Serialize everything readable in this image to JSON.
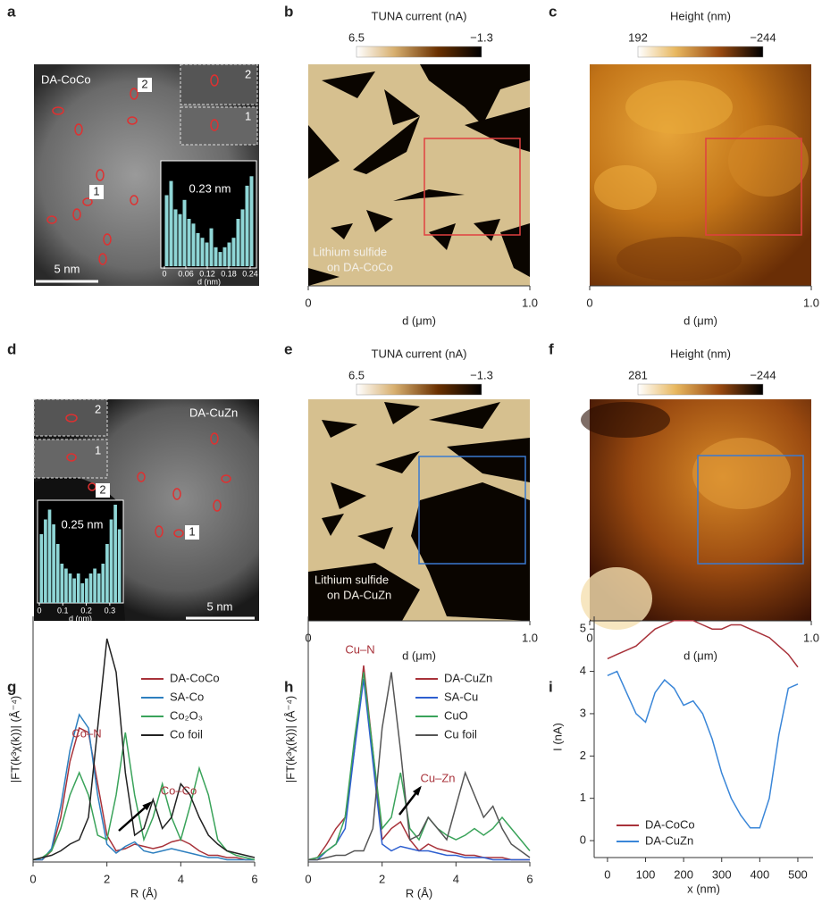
{
  "panels": {
    "a": {
      "label": "a",
      "sample": "DA-CoCo",
      "sites": [
        "2",
        "1"
      ],
      "insets": [
        "2",
        "1"
      ],
      "scale_bar": "5 nm"
    },
    "b": {
      "label": "b",
      "colorbar": {
        "title": "TUNA current (nA)",
        "clim": [
          6.5,
          -1.3
        ],
        "ticks": [
          6.5,
          {
            "value": -1.3,
            "label": "−1.3"
          }
        ]
      },
      "caption": [
        "Lithium sulfide",
        "on DA-CoCo"
      ],
      "xlim": [
        0,
        1
      ],
      "xticks": [
        0,
        {
          "value": 1,
          "label": "1.0"
        }
      ],
      "xlabel": "d (μm)"
    },
    "c": {
      "label": "c",
      "colorbar": {
        "title": "Height (nm)",
        "clim": [
          192,
          -244
        ],
        "ticks": [
          192,
          {
            "value": -244,
            "label": "−244"
          }
        ]
      },
      "xlim": [
        0,
        1
      ],
      "xticks": [
        0,
        {
          "value": 1,
          "label": "1.0"
        }
      ],
      "xlabel": "d (μm)"
    },
    "d": {
      "label": "d",
      "sample": "DA-CuZn",
      "sites": [
        "2",
        "1"
      ],
      "insets": [
        "2",
        "1"
      ],
      "scale_bar": "5 nm"
    },
    "e": {
      "label": "e",
      "colorbar": {
        "title": "TUNA current (nA)",
        "clim": [
          6.5,
          -1.3
        ],
        "ticks": [
          6.5,
          {
            "value": -1.3,
            "label": "−1.3"
          }
        ]
      },
      "caption": [
        "Lithium sulfide",
        "on DA-CuZn"
      ],
      "xlim": [
        0,
        1
      ],
      "xticks": [
        0,
        {
          "value": 1,
          "label": "1.0"
        }
      ],
      "xlabel": "d (μm)"
    },
    "f": {
      "label": "f",
      "colorbar": {
        "title": "Height (nm)",
        "clim": [
          281,
          -244
        ],
        "ticks": [
          281,
          {
            "value": -244,
            "label": "−244"
          }
        ]
      },
      "xlim": [
        0,
        1
      ],
      "xticks": [
        0,
        {
          "value": 1,
          "label": "1.0"
        }
      ],
      "xlabel": "d (μm)"
    }
  },
  "chart_data": [
    {
      "type": "bar",
      "color": "#8fd6d6",
      "annotations": [
        "0.23 nm"
      ],
      "xlabel": "d (nm)",
      "xlim": [
        0,
        0.25
      ],
      "xticks": [
        0,
        0.06,
        0.12,
        0.18,
        0.24
      ],
      "ylim": [
        0,
        1
      ],
      "x": [
        0.00625,
        0.01875,
        0.03125,
        0.04375,
        0.05625,
        0.06875,
        0.08125,
        0.09375,
        0.10625,
        0.11875,
        0.13125,
        0.14375,
        0.15625,
        0.16875,
        0.18125,
        0.19375,
        0.20625,
        0.21875,
        0.23125,
        0.24375
      ],
      "values": [
        0.75,
        0.9,
        0.6,
        0.55,
        0.7,
        0.5,
        0.45,
        0.35,
        0.3,
        0.25,
        0.4,
        0.2,
        0.15,
        0.2,
        0.25,
        0.3,
        0.5,
        0.6,
        0.85,
        0.95
      ]
    },
    {
      "type": "bar",
      "color": "#8fd6d6",
      "annotations": [
        "0.25 nm"
      ],
      "xlabel": "d (nm)",
      "xlim": [
        0,
        0.35
      ],
      "xticks": [
        0,
        0.1,
        0.2,
        0.3
      ],
      "ylim": [
        0,
        1
      ],
      "x": [
        0.00875,
        0.02625,
        0.04375,
        0.06125,
        0.07875,
        0.09625,
        0.11375,
        0.13125,
        0.14875,
        0.16625,
        0.18375,
        0.20125,
        0.21875,
        0.23625,
        0.25375,
        0.27125,
        0.28875,
        0.30625,
        0.32375,
        0.34125
      ],
      "values": [
        0.7,
        0.85,
        0.95,
        0.8,
        0.6,
        0.4,
        0.35,
        0.3,
        0.25,
        0.3,
        0.2,
        0.25,
        0.3,
        0.35,
        0.3,
        0.4,
        0.6,
        0.85,
        1.0,
        0.75
      ]
    },
    {
      "type": "line",
      "label": "g",
      "xlabel": "R (Å)",
      "ylabel": "|FT(k³χ(k))| (Å⁻⁴)",
      "annotations": [
        "Co–N",
        "Co–Co"
      ],
      "xlim": [
        0,
        6
      ],
      "xticks": [
        0,
        2,
        4,
        6
      ],
      "ylim": [
        0,
        1.1
      ],
      "x": [
        0,
        0.25,
        0.5,
        0.75,
        1,
        1.25,
        1.5,
        1.75,
        2,
        2.25,
        2.5,
        2.75,
        3,
        3.25,
        3.5,
        3.75,
        4,
        4.25,
        4.5,
        4.75,
        5,
        5.25,
        5.5,
        5.75,
        6
      ],
      "series": [
        {
          "name": "DA-CoCo",
          "color": "#a8323a",
          "values": [
            0.01,
            0.01,
            0.05,
            0.2,
            0.45,
            0.6,
            0.58,
            0.35,
            0.12,
            0.05,
            0.06,
            0.08,
            0.07,
            0.06,
            0.07,
            0.09,
            0.1,
            0.08,
            0.05,
            0.03,
            0.03,
            0.02,
            0.02,
            0.01,
            0.01
          ]
        },
        {
          "name": "SA-Co",
          "color": "#2d7fbf",
          "values": [
            0.01,
            0.01,
            0.06,
            0.25,
            0.5,
            0.66,
            0.6,
            0.3,
            0.08,
            0.04,
            0.07,
            0.09,
            0.05,
            0.04,
            0.05,
            0.06,
            0.05,
            0.04,
            0.03,
            0.02,
            0.02,
            0.01,
            0.01,
            0.01,
            0.01
          ]
        },
        {
          "name": "Co₂O₃",
          "color": "#3aa35a",
          "values": [
            0.01,
            0.02,
            0.05,
            0.15,
            0.3,
            0.4,
            0.3,
            0.12,
            0.1,
            0.3,
            0.58,
            0.3,
            0.1,
            0.2,
            0.35,
            0.2,
            0.1,
            0.25,
            0.42,
            0.3,
            0.1,
            0.05,
            0.03,
            0.02,
            0.01
          ]
        },
        {
          "name": "Co foil",
          "color": "#222222",
          "values": [
            0.01,
            0.02,
            0.03,
            0.05,
            0.08,
            0.1,
            0.2,
            0.6,
            1.0,
            0.85,
            0.4,
            0.12,
            0.15,
            0.28,
            0.15,
            0.2,
            0.35,
            0.3,
            0.2,
            0.12,
            0.08,
            0.05,
            0.04,
            0.03,
            0.02
          ]
        }
      ]
    },
    {
      "type": "line",
      "label": "h",
      "xlabel": "R (Å)",
      "ylabel": "|FT(k³χ(k))| (Å⁻⁴)",
      "annotations": [
        "Cu–N",
        "Cu–Zn"
      ],
      "xlim": [
        0,
        6
      ],
      "xticks": [
        0,
        2,
        4,
        6
      ],
      "ylim": [
        0,
        1.1
      ],
      "x": [
        0,
        0.25,
        0.5,
        0.75,
        1,
        1.25,
        1.5,
        1.75,
        2,
        2.25,
        2.5,
        2.75,
        3,
        3.25,
        3.5,
        3.75,
        4,
        4.25,
        4.5,
        4.75,
        5,
        5.25,
        5.5,
        5.75,
        6
      ],
      "series": [
        {
          "name": "DA-CuZn",
          "color": "#a8323a",
          "values": [
            0.01,
            0.02,
            0.08,
            0.15,
            0.2,
            0.5,
            0.88,
            0.5,
            0.1,
            0.15,
            0.18,
            0.1,
            0.05,
            0.08,
            0.06,
            0.05,
            0.04,
            0.03,
            0.03,
            0.02,
            0.02,
            0.02,
            0.01,
            0.01,
            0.01
          ]
        },
        {
          "name": "SA-Cu",
          "color": "#2d5fd0",
          "values": [
            0.01,
            0.01,
            0.05,
            0.08,
            0.15,
            0.5,
            0.82,
            0.45,
            0.08,
            0.05,
            0.07,
            0.06,
            0.05,
            0.05,
            0.04,
            0.03,
            0.03,
            0.02,
            0.02,
            0.02,
            0.01,
            0.01,
            0.01,
            0.01,
            0.01
          ]
        },
        {
          "name": "CuO",
          "color": "#3aa35a",
          "values": [
            0.01,
            0.02,
            0.05,
            0.08,
            0.2,
            0.55,
            0.85,
            0.5,
            0.15,
            0.2,
            0.4,
            0.15,
            0.1,
            0.2,
            0.15,
            0.12,
            0.1,
            0.12,
            0.15,
            0.12,
            0.15,
            0.2,
            0.15,
            0.1,
            0.05
          ]
        },
        {
          "name": "Cu foil",
          "color": "#555555",
          "values": [
            0.01,
            0.01,
            0.02,
            0.03,
            0.03,
            0.05,
            0.05,
            0.15,
            0.6,
            0.85,
            0.5,
            0.1,
            0.12,
            0.2,
            0.15,
            0.1,
            0.25,
            0.4,
            0.3,
            0.2,
            0.25,
            0.15,
            0.08,
            0.05,
            0.02
          ]
        }
      ]
    },
    {
      "type": "line",
      "label": "i",
      "xlabel": "x (nm)",
      "ylabel": "I (nA)",
      "xlim": [
        -35,
        540
      ],
      "xticks": [
        0,
        100,
        200,
        300,
        400,
        500
      ],
      "ylim": [
        -0.4,
        5.3
      ],
      "yticks": [
        0,
        1,
        2,
        3,
        4,
        5
      ],
      "x": [
        0,
        25,
        50,
        75,
        100,
        125,
        150,
        175,
        200,
        225,
        250,
        275,
        300,
        325,
        350,
        375,
        400,
        425,
        450,
        475,
        500
      ],
      "series": [
        {
          "name": "DA-CoCo",
          "color": "#a8323a",
          "values": [
            4.3,
            4.4,
            4.5,
            4.6,
            4.8,
            5.0,
            5.1,
            5.2,
            5.2,
            5.2,
            5.1,
            5.0,
            5.0,
            5.1,
            5.1,
            5.0,
            4.9,
            4.8,
            4.6,
            4.4,
            4.1
          ]
        },
        {
          "name": "DA-CuZn",
          "color": "#3a86d8",
          "values": [
            3.9,
            4.0,
            3.5,
            3.0,
            2.8,
            3.5,
            3.8,
            3.6,
            3.2,
            3.3,
            3.0,
            2.4,
            1.6,
            1.0,
            0.6,
            0.3,
            0.3,
            1.0,
            2.5,
            3.6,
            3.7
          ]
        }
      ]
    }
  ]
}
